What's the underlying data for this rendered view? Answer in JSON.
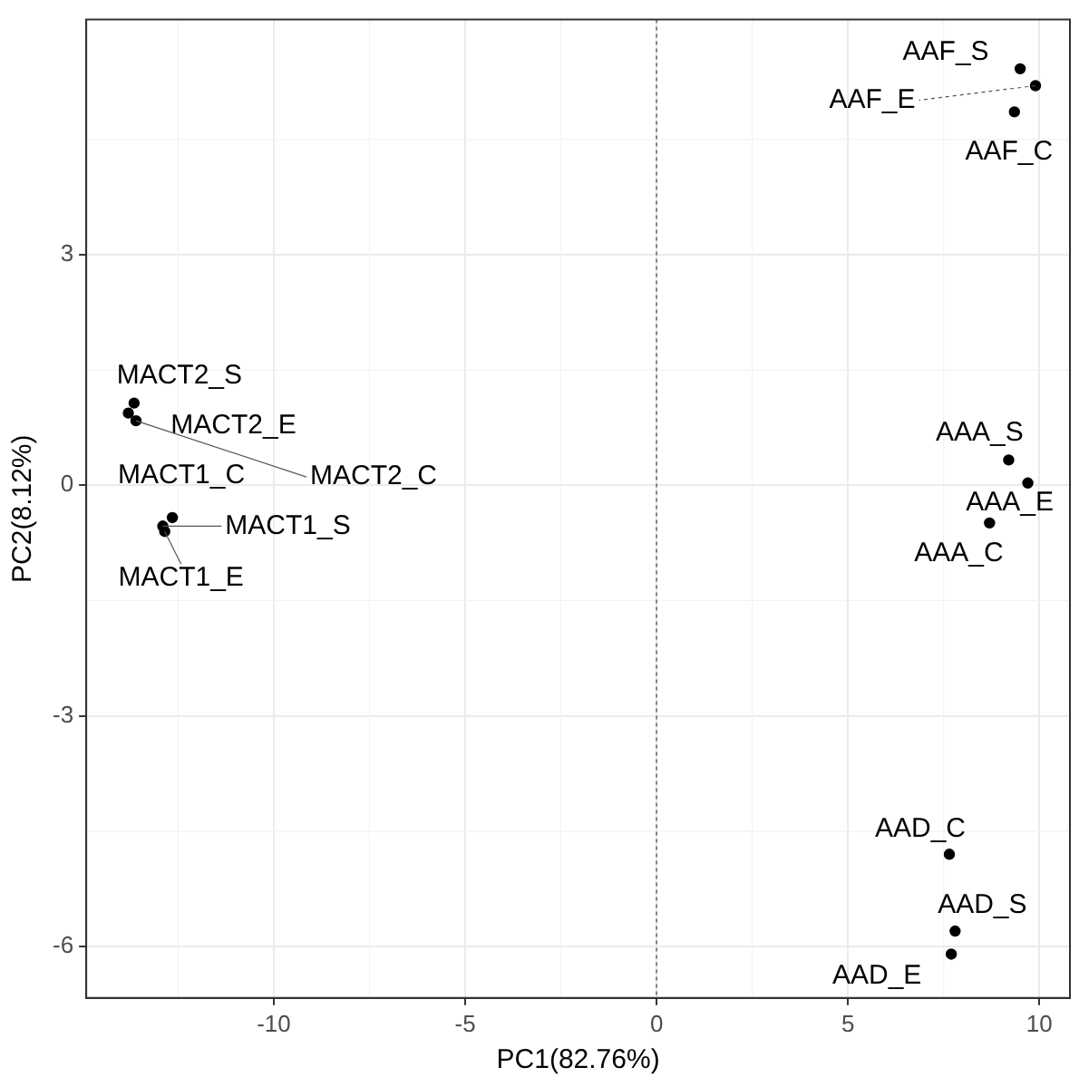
{
  "chart_data": {
    "type": "scatter",
    "xlabel": "PC1(82.76%)",
    "ylabel": "PC2(8.12%)",
    "x": [
      9.5,
      9.9,
      9.35,
      9.2,
      9.7,
      8.7,
      7.65,
      7.8,
      7.7,
      -13.65,
      -13.8,
      -13.6,
      -12.65,
      -12.9,
      -12.85
    ],
    "series": [
      {
        "color": "#000000",
        "values": [
          5.42,
          5.2,
          4.86,
          0.33,
          0.03,
          -0.49,
          -4.8,
          -5.8,
          -6.1,
          1.07,
          0.94,
          0.84,
          -0.42,
          -0.53,
          -0.6
        ]
      }
    ],
    "annotations": [
      {
        "text": "AAF_S",
        "x": 9.5,
        "y": 5.42
      },
      {
        "text": "AAF_E",
        "x": 9.9,
        "y": 5.2
      },
      {
        "text": "AAF_C",
        "x": 9.35,
        "y": 4.86
      },
      {
        "text": "AAA_S",
        "x": 9.2,
        "y": 0.33
      },
      {
        "text": "AAA_E",
        "x": 9.7,
        "y": 0.03
      },
      {
        "text": "AAA_C",
        "x": 8.7,
        "y": -0.49
      },
      {
        "text": "AAD_C",
        "x": 7.65,
        "y": -4.8
      },
      {
        "text": "AAD_S",
        "x": 7.8,
        "y": -5.8
      },
      {
        "text": "AAD_E",
        "x": 7.7,
        "y": -6.1
      },
      {
        "text": "MACT2_S",
        "x": -13.65,
        "y": 1.07
      },
      {
        "text": "MACT2_E",
        "x": -13.8,
        "y": 0.94
      },
      {
        "text": "MACT2_C",
        "x": -13.6,
        "y": 0.84
      },
      {
        "text": "MACT1_C",
        "x": -12.65,
        "y": -0.42
      },
      {
        "text": "MACT1_S",
        "x": -12.9,
        "y": -0.53
      },
      {
        "text": "MACT1_E",
        "x": -12.85,
        "y": -0.6
      }
    ],
    "xlim": [
      -14.9,
      10.8
    ],
    "ylim": [
      -6.67,
      6.06
    ],
    "xticks": [
      -10,
      -5,
      0,
      5,
      10
    ],
    "yticks": [
      -6,
      -3,
      0,
      3
    ],
    "ref_lines": [
      {
        "axis": "x",
        "value": 0,
        "color": "#808080",
        "line_style": "dotted"
      }
    ],
    "grid": true,
    "marker": "circle",
    "legend": false
  }
}
